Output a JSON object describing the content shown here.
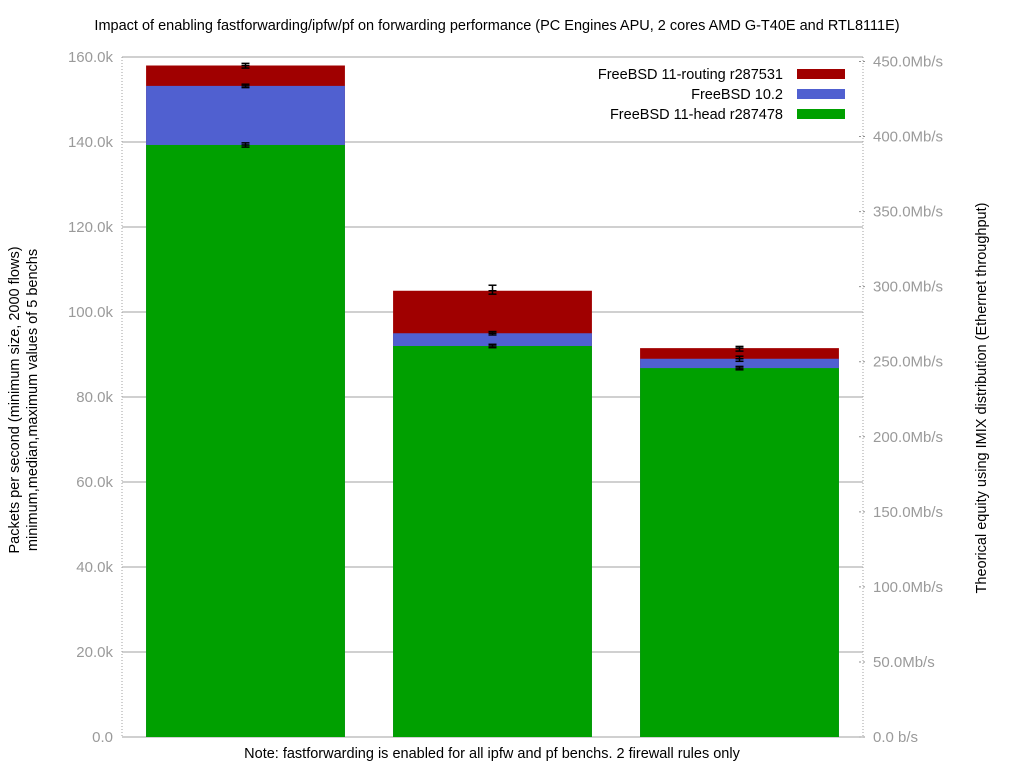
{
  "chart_data": {
    "type": "bar",
    "stacked": true,
    "title": "Impact of enabling fastforwarding/ipfw/pf on forwarding performance (PC Engines APU, 2 cores AMD G-T40E and RTL8111E)",
    "ylabel_lines": [
      "Packets per second (minimum size, 2000 flows)",
      "minimum,median,maximum values of 5 benchs"
    ],
    "y2label": "Theorical equity using IMIX distribution (Ethernet throughput)",
    "note": "Note: fastforwarding is enabled for all ipfw and pf benchs. 2 firewall rules only",
    "ylim": [
      0,
      160000
    ],
    "y_ticks": [
      {
        "value": 0,
        "label": "0.0"
      },
      {
        "value": 20000,
        "label": "20.0k"
      },
      {
        "value": 40000,
        "label": "40.0k"
      },
      {
        "value": 60000,
        "label": "60.0k"
      },
      {
        "value": 80000,
        "label": "80.0k"
      },
      {
        "value": 100000,
        "label": "100.0k"
      },
      {
        "value": 120000,
        "label": "120.0k"
      },
      {
        "value": 140000,
        "label": "140.0k"
      },
      {
        "value": 160000,
        "label": "160.0k"
      }
    ],
    "y2_ticks": [
      {
        "value": 0,
        "label": "0.0 b/s"
      },
      {
        "value": 50,
        "label": "50.0Mb/s"
      },
      {
        "value": 100,
        "label": "100.0Mb/s"
      },
      {
        "value": 150,
        "label": "150.0Mb/s"
      },
      {
        "value": 200,
        "label": "200.0Mb/s"
      },
      {
        "value": 250,
        "label": "250.0Mb/s"
      },
      {
        "value": 300,
        "label": "300.0Mb/s"
      },
      {
        "value": 350,
        "label": "350.0Mb/s"
      },
      {
        "value": 400,
        "label": "400.0Mb/s"
      },
      {
        "value": 450,
        "label": "450.0Mb/s"
      }
    ],
    "y2lim": [
      0,
      453
    ],
    "grid": true,
    "legend_position": "top-right",
    "series": [
      {
        "name": "FreeBSD 11-head r287478",
        "color": "#00a000",
        "values": [
          139300,
          92000,
          86800
        ],
        "errors": [
          [
            138800,
            139300,
            139800
          ],
          [
            91600,
            92000,
            92400
          ],
          [
            86400,
            86800,
            87200
          ]
        ]
      },
      {
        "name": "FreeBSD 10.2",
        "color": "#5060d0",
        "values": [
          153200,
          95000,
          89000
        ],
        "errors": [
          [
            152800,
            153200,
            153600
          ],
          [
            94600,
            95000,
            95400
          ],
          [
            88400,
            89000,
            89600
          ]
        ]
      },
      {
        "name": "FreeBSD 11-routing r287531",
        "color": "#a00000",
        "values": [
          158000,
          105000,
          91500
        ],
        "errors": [
          [
            157400,
            158000,
            158500
          ],
          [
            104200,
            105000,
            106300
          ],
          [
            90800,
            91500,
            91900
          ]
        ]
      }
    ],
    "legend_order": [
      "FreeBSD 11-routing r287531",
      "FreeBSD 10.2",
      "FreeBSD 11-head r287478"
    ],
    "categories": [
      "",
      "",
      ""
    ]
  }
}
